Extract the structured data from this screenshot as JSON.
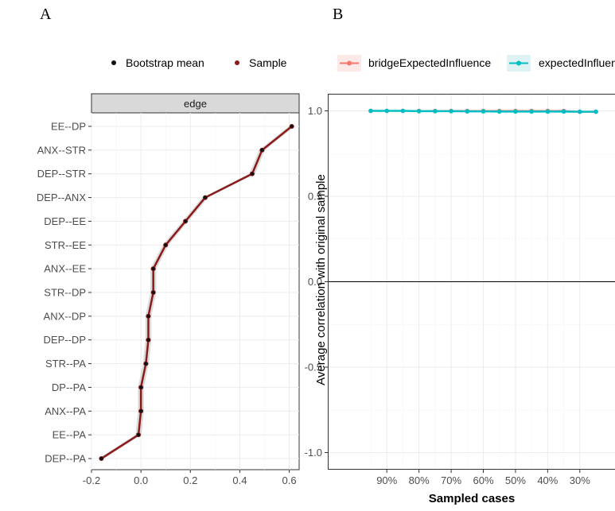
{
  "panels": {
    "a_label": "A",
    "b_label": "B"
  },
  "chart_data": [
    {
      "type": "line",
      "panel": "A",
      "facet_label": "edge",
      "legend": [
        "Bootstrap mean",
        "Sample"
      ],
      "categories": [
        "EE--DP",
        "ANX--STR",
        "DEP--STR",
        "DEP--ANX",
        "DEP--EE",
        "STR--EE",
        "ANX--EE",
        "STR--DP",
        "ANX--DP",
        "DEP--DP",
        "STR--PA",
        "DP--PA",
        "ANX--PA",
        "EE--PA",
        "DEP--PA"
      ],
      "series": [
        {
          "name": "Sample",
          "values": [
            0.61,
            0.49,
            0.45,
            0.26,
            0.18,
            0.1,
            0.05,
            0.05,
            0.03,
            0.03,
            0.02,
            0.0,
            0.0,
            -0.01,
            -0.16
          ]
        },
        {
          "name": "Bootstrap mean",
          "values": [
            0.61,
            0.49,
            0.45,
            0.26,
            0.18,
            0.1,
            0.05,
            0.05,
            0.03,
            0.03,
            0.02,
            0.0,
            0.0,
            -0.01,
            -0.16
          ]
        }
      ],
      "xticks": [
        -0.2,
        0.0,
        0.2,
        0.4,
        0.6
      ],
      "xtick_labels": [
        "-0.2",
        "0.0",
        "0.2",
        "0.4",
        "0.6"
      ],
      "xlim": [
        -0.2,
        0.64
      ]
    },
    {
      "type": "line",
      "panel": "B",
      "legend": [
        "bridgeExpectedInfluence",
        "expectedInfluence"
      ],
      "ylabel": "Average correlation with original sample",
      "xlabel": "Sampled cases",
      "x": [
        95,
        90,
        85,
        80,
        75,
        70,
        65,
        60,
        55,
        50,
        45,
        40,
        35,
        30,
        25
      ],
      "xticks": [
        90,
        80,
        70,
        60,
        50,
        40,
        30
      ],
      "xtick_labels": [
        "90%",
        "80%",
        "70%",
        "60%",
        "50%",
        "40%",
        "30%"
      ],
      "yticks": [
        1.0,
        0.5,
        0.0,
        -0.5,
        -1.0
      ],
      "ytick_labels": [
        "1.0",
        "0.5",
        "0.0",
        "-0.5",
        "-1.0"
      ],
      "ylim": [
        -1.05,
        1.05
      ],
      "series": [
        {
          "name": "bridgeExpectedInfluence",
          "color": "#f8766d",
          "values": [
            1.0,
            1.0,
            1.0,
            1.0,
            1.0,
            1.0,
            1.0,
            1.0,
            1.0,
            1.0,
            1.0,
            1.0,
            1.0,
            0.995,
            0.995
          ]
        },
        {
          "name": "expectedInfluence",
          "color": "#00bfc4",
          "values": [
            1.0,
            1.0,
            1.0,
            0.998,
            0.998,
            0.998,
            0.997,
            0.997,
            0.996,
            0.996,
            0.996,
            0.996,
            0.996,
            0.995,
            0.995
          ]
        }
      ]
    }
  ]
}
